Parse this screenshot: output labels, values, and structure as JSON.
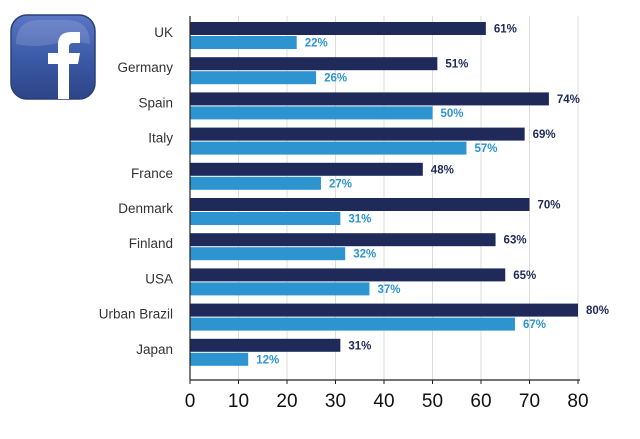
{
  "logo": {
    "icon": "facebook-logo-icon",
    "text": "f"
  },
  "chart_data": {
    "type": "bar",
    "orientation": "horizontal",
    "title": "",
    "xlabel": "",
    "ylabel": "",
    "categories": [
      "UK",
      "Germany",
      "Spain",
      "Italy",
      "France",
      "Denmark",
      "Finland",
      "USA",
      "Urban Brazil",
      "Japan"
    ],
    "series": [
      {
        "name": "series-1",
        "color": "#1f2a5a",
        "label_color": "#1f2a5a",
        "values": [
          61,
          51,
          74,
          69,
          48,
          70,
          63,
          65,
          80,
          31
        ],
        "labels": [
          "61%",
          "51%",
          "74%",
          "69%",
          "48%",
          "70%",
          "63%",
          "65%",
          "80%",
          "31%"
        ]
      },
      {
        "name": "series-2",
        "color": "#2d94cf",
        "label_color": "#2d94cf",
        "values": [
          22,
          26,
          50,
          57,
          27,
          31,
          32,
          37,
          67,
          12
        ],
        "labels": [
          "22%",
          "26%",
          "50%",
          "57%",
          "27%",
          "31%",
          "32%",
          "37%",
          "67%",
          "12%"
        ]
      }
    ],
    "xlim": [
      0,
      80
    ],
    "xticks": [
      "0",
      "10",
      "20",
      "30",
      "40",
      "50",
      "60",
      "70",
      "80"
    ],
    "grid": true,
    "gridlines": [
      10,
      20,
      30,
      40,
      50,
      60,
      70,
      80
    ]
  }
}
